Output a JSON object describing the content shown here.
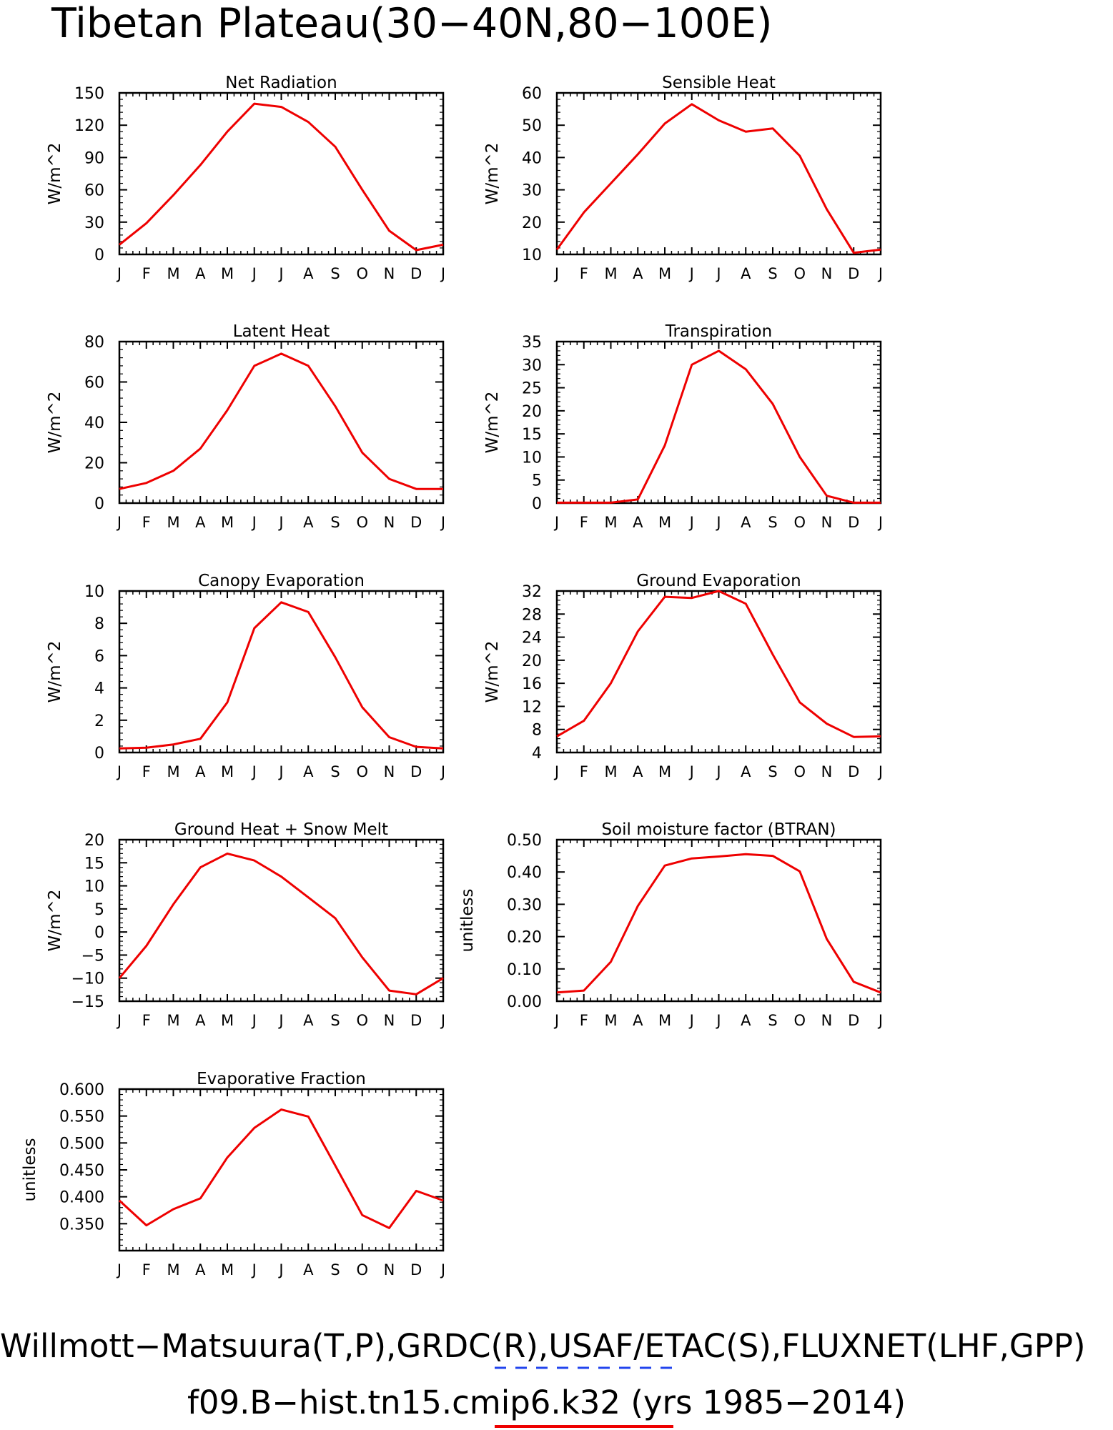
{
  "page": {
    "title": "Tibetan Plateau(30−40N,80−100E)",
    "footer_line1": "Willmott−Matsuura(T,P),GRDC(R),USAF/ETAC(S),FLUXNET(LHF,GPP)",
    "footer_line2": "f09.B−hist.tn15.cmip6.k32 (yrs 1985−2014)",
    "colors": {
      "model_line": "#ee0000",
      "obs_dash": "#2244ee",
      "axes": "#000000"
    }
  },
  "chart_data": [
    {
      "type": "line",
      "title": "Net Radiation",
      "ylabel": "W/m^2",
      "x": [
        "J",
        "F",
        "M",
        "A",
        "M",
        "J",
        "J",
        "A",
        "S",
        "O",
        "N",
        "D",
        "J"
      ],
      "ylim": [
        0,
        150
      ],
      "yticks": [
        0,
        30,
        60,
        90,
        120,
        150
      ],
      "ytick_labels": [
        "0",
        "30",
        "60",
        "90",
        "120",
        "150"
      ],
      "series": [
        {
          "values": [
            9,
            29,
            55,
            83,
            114,
            140,
            137,
            123,
            100,
            60,
            22,
            4,
            9
          ]
        }
      ]
    },
    {
      "type": "line",
      "title": "Sensible Heat",
      "ylabel": "W/m^2",
      "x": [
        "J",
        "F",
        "M",
        "A",
        "M",
        "J",
        "J",
        "A",
        "S",
        "O",
        "N",
        "D",
        "J"
      ],
      "ylim": [
        10,
        60
      ],
      "yticks": [
        10,
        20,
        30,
        40,
        50,
        60
      ],
      "ytick_labels": [
        "10",
        "20",
        "30",
        "40",
        "50",
        "60"
      ],
      "series": [
        {
          "values": [
            11.5,
            23,
            32,
            41,
            50.5,
            56.5,
            51.5,
            48,
            49,
            40.5,
            24,
            10.5,
            11.5
          ]
        }
      ]
    },
    {
      "type": "line",
      "title": "Latent Heat",
      "ylabel": "W/m^2",
      "x": [
        "J",
        "F",
        "M",
        "A",
        "M",
        "J",
        "J",
        "A",
        "S",
        "O",
        "N",
        "D",
        "J"
      ],
      "ylim": [
        0,
        80
      ],
      "yticks": [
        0,
        20,
        40,
        60,
        80
      ],
      "ytick_labels": [
        "0",
        "20",
        "40",
        "60",
        "80"
      ],
      "series": [
        {
          "values": [
            7,
            10,
            16,
            27,
            46,
            68,
            74,
            68,
            48,
            25,
            12,
            7,
            7
          ]
        }
      ]
    },
    {
      "type": "line",
      "title": "Transpiration",
      "ylabel": "W/m^2",
      "x": [
        "J",
        "F",
        "M",
        "A",
        "M",
        "J",
        "J",
        "A",
        "S",
        "O",
        "N",
        "D",
        "J"
      ],
      "ylim": [
        0,
        35
      ],
      "yticks": [
        0,
        5,
        10,
        15,
        20,
        25,
        30,
        35
      ],
      "ytick_labels": [
        "0",
        "5",
        "10",
        "15",
        "20",
        "25",
        "30",
        "35"
      ],
      "series": [
        {
          "values": [
            0.1,
            0.1,
            0.1,
            0.8,
            12.5,
            30,
            33,
            29,
            21.5,
            10,
            1.6,
            0.1,
            0.1
          ]
        }
      ]
    },
    {
      "type": "line",
      "title": "Canopy Evaporation",
      "ylabel": "W/m^2",
      "x": [
        "J",
        "F",
        "M",
        "A",
        "M",
        "J",
        "J",
        "A",
        "S",
        "O",
        "N",
        "D",
        "J"
      ],
      "ylim": [
        0,
        10
      ],
      "yticks": [
        0,
        2,
        4,
        6,
        8,
        10
      ],
      "ytick_labels": [
        "0",
        "2",
        "4",
        "6",
        "8",
        "10"
      ],
      "series": [
        {
          "values": [
            0.25,
            0.3,
            0.5,
            0.85,
            3.1,
            7.7,
            9.3,
            8.7,
            5.9,
            2.8,
            0.95,
            0.35,
            0.25
          ]
        }
      ]
    },
    {
      "type": "line",
      "title": "Ground Evaporation",
      "ylabel": "W/m^2",
      "x": [
        "J",
        "F",
        "M",
        "A",
        "M",
        "J",
        "J",
        "A",
        "S",
        "O",
        "N",
        "D",
        "J"
      ],
      "ylim": [
        4,
        32
      ],
      "yticks": [
        4,
        8,
        12,
        16,
        20,
        24,
        28,
        32
      ],
      "ytick_labels": [
        "4",
        "8",
        "12",
        "16",
        "20",
        "24",
        "28",
        "32"
      ],
      "series": [
        {
          "values": [
            6.8,
            9.5,
            16,
            25,
            31,
            30.8,
            32,
            29.8,
            21,
            12.7,
            9,
            6.7,
            6.8
          ]
        }
      ]
    },
    {
      "type": "line",
      "title": "Ground Heat + Snow Melt",
      "ylabel": "W/m^2",
      "x": [
        "J",
        "F",
        "M",
        "A",
        "M",
        "J",
        "J",
        "A",
        "S",
        "O",
        "N",
        "D",
        "J"
      ],
      "ylim": [
        -15,
        20
      ],
      "yticks": [
        -15,
        -10,
        -5,
        0,
        5,
        10,
        15,
        20
      ],
      "ytick_labels": [
        "−15",
        "−10",
        "−5",
        "0",
        "5",
        "10",
        "15",
        "20"
      ],
      "series": [
        {
          "values": [
            -10,
            -3,
            6,
            14,
            17,
            15.5,
            12,
            7.5,
            3,
            -5.5,
            -12.7,
            -13.5,
            -10
          ]
        }
      ]
    },
    {
      "type": "line",
      "title": "Soil moisture factor (BTRAN)",
      "ylabel": "unitless",
      "x": [
        "J",
        "F",
        "M",
        "A",
        "M",
        "J",
        "J",
        "A",
        "S",
        "O",
        "N",
        "D",
        "J"
      ],
      "ylim": [
        0,
        0.5
      ],
      "yticks": [
        0,
        0.1,
        0.2,
        0.3,
        0.4,
        0.5
      ],
      "ytick_labels": [
        "0.00",
        "0.10",
        "0.20",
        "0.30",
        "0.40",
        "0.50"
      ],
      "series": [
        {
          "values": [
            0.027,
            0.033,
            0.122,
            0.295,
            0.42,
            0.442,
            0.448,
            0.455,
            0.45,
            0.402,
            0.193,
            0.06,
            0.027
          ]
        }
      ]
    },
    {
      "type": "line",
      "title": "Evaporative Fraction",
      "ylabel": "unitless",
      "x": [
        "J",
        "F",
        "M",
        "A",
        "M",
        "J",
        "J",
        "A",
        "S",
        "O",
        "N",
        "D",
        "J"
      ],
      "ylim": [
        0.3,
        0.6
      ],
      "yticks": [
        0.35,
        0.4,
        0.45,
        0.5,
        0.55,
        0.6
      ],
      "ytick_labels": [
        "0.350",
        "0.400",
        "0.450",
        "0.500",
        "0.550",
        "0.600"
      ],
      "series": [
        {
          "values": [
            0.393,
            0.347,
            0.377,
            0.397,
            0.473,
            0.528,
            0.562,
            0.549,
            0.458,
            0.366,
            0.342,
            0.411,
            0.393
          ]
        }
      ]
    }
  ]
}
